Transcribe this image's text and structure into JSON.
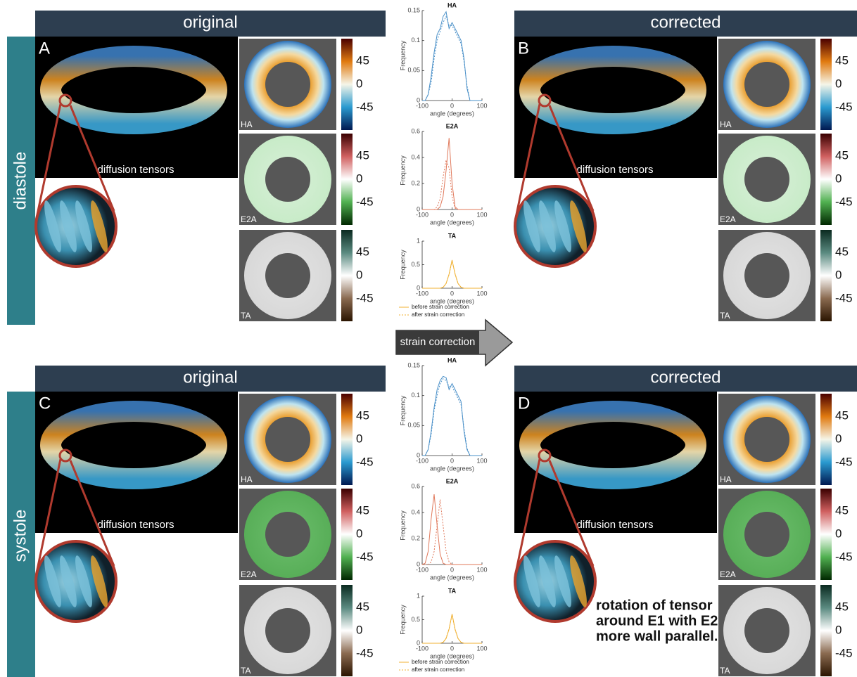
{
  "column_headers": [
    "original",
    "corrected"
  ],
  "row_labels": [
    "diastole",
    "systole"
  ],
  "panel_letters": [
    "A",
    "B",
    "C",
    "D"
  ],
  "tensor_label": "diffusion tensors",
  "map_labels": [
    "HA",
    "E2A",
    "TA"
  ],
  "colorbar_ticks": [
    45,
    0,
    -45
  ],
  "arrow_label": "strain correction",
  "annotation": [
    "rotation of tensor",
    "around E1 with E2",
    "more wall parallel."
  ],
  "chart_data": [
    {
      "type": "line",
      "title": "HA",
      "xlabel": "angle (degrees)",
      "ylabel": "Frequency",
      "x": [
        -100,
        -90,
        -80,
        -70,
        -60,
        -50,
        -40,
        -30,
        -20,
        -10,
        0,
        10,
        20,
        30,
        40,
        50,
        60,
        70,
        80,
        90,
        100
      ],
      "xlim": [
        -100,
        100
      ],
      "xticks": [
        -100,
        0,
        100
      ],
      "ylim": [
        0,
        0.15
      ],
      "yticks": [
        0,
        0.05,
        0.1,
        0.15
      ],
      "series": [
        {
          "name": "before strain correction",
          "color": "#4a90c8",
          "dash": false,
          "values": [
            0,
            0,
            0.01,
            0.04,
            0.08,
            0.11,
            0.12,
            0.14,
            0.148,
            0.12,
            0.13,
            0.12,
            0.11,
            0.1,
            0.07,
            0.02,
            0,
            0,
            0,
            0,
            0
          ]
        },
        {
          "name": "after strain correction",
          "color": "#4a90c8",
          "dash": true,
          "values": [
            0,
            0,
            0.01,
            0.03,
            0.07,
            0.1,
            0.115,
            0.13,
            0.14,
            0.125,
            0.125,
            0.115,
            0.105,
            0.095,
            0.065,
            0.025,
            0,
            0,
            0,
            0,
            0
          ]
        }
      ]
    },
    {
      "type": "line",
      "title": "E2A",
      "xlabel": "angle (degrees)",
      "ylabel": "Frequency",
      "x": [
        -100,
        -90,
        -80,
        -70,
        -60,
        -50,
        -40,
        -30,
        -20,
        -10,
        0,
        10,
        20,
        30,
        40,
        50,
        60,
        70,
        80,
        90,
        100
      ],
      "xlim": [
        -100,
        100
      ],
      "xticks": [
        -100,
        0,
        100
      ],
      "ylim": [
        0,
        0.6
      ],
      "yticks": [
        0,
        0.2,
        0.4,
        0.6
      ],
      "series": [
        {
          "name": "before strain correction",
          "color": "#e0785a",
          "dash": false,
          "values": [
            0,
            0,
            0,
            0,
            0,
            0,
            0.02,
            0.1,
            0.3,
            0.55,
            0.2,
            0.02,
            0,
            0,
            0,
            0,
            0,
            0,
            0,
            0,
            0
          ]
        },
        {
          "name": "after strain correction",
          "color": "#e0785a",
          "dash": true,
          "values": [
            0,
            0,
            0,
            0,
            0,
            0.02,
            0.08,
            0.25,
            0.38,
            0.32,
            0.1,
            0.01,
            0,
            0,
            0,
            0,
            0,
            0,
            0,
            0,
            0
          ]
        }
      ]
    },
    {
      "type": "line",
      "title": "TA",
      "xlabel": "angle (degrees)",
      "ylabel": "Frequency",
      "legend": true,
      "x": [
        -100,
        -90,
        -80,
        -70,
        -60,
        -50,
        -40,
        -30,
        -20,
        -10,
        0,
        10,
        20,
        30,
        40,
        50,
        60,
        70,
        80,
        90,
        100
      ],
      "xlim": [
        -100,
        100
      ],
      "xticks": [
        -100,
        0,
        100
      ],
      "ylim": [
        0,
        1
      ],
      "yticks": [
        0,
        0.5,
        1
      ],
      "series": [
        {
          "name": "before strain correction",
          "color": "#f0b030",
          "dash": false,
          "values": [
            0,
            0,
            0,
            0,
            0,
            0,
            0,
            0.02,
            0.1,
            0.3,
            0.6,
            0.3,
            0.1,
            0.02,
            0,
            0,
            0,
            0,
            0,
            0,
            0
          ]
        },
        {
          "name": "after strain correction",
          "color": "#f0b030",
          "dash": true,
          "values": [
            0,
            0,
            0,
            0,
            0,
            0,
            0,
            0.02,
            0.1,
            0.29,
            0.58,
            0.31,
            0.1,
            0.02,
            0,
            0,
            0,
            0,
            0,
            0,
            0
          ]
        }
      ]
    },
    {
      "type": "line",
      "title": "HA",
      "xlabel": "angle (degrees)",
      "ylabel": "Frequency",
      "x": [
        -100,
        -90,
        -80,
        -70,
        -60,
        -50,
        -40,
        -30,
        -20,
        -10,
        0,
        10,
        20,
        30,
        40,
        50,
        60,
        70,
        80,
        90,
        100
      ],
      "xlim": [
        -100,
        100
      ],
      "xticks": [
        -100,
        0,
        100
      ],
      "ylim": [
        0,
        0.15
      ],
      "yticks": [
        0,
        0.05,
        0.1,
        0.15
      ],
      "series": [
        {
          "name": "before strain correction",
          "color": "#4a90c8",
          "dash": false,
          "values": [
            0,
            0,
            0.01,
            0.04,
            0.08,
            0.11,
            0.125,
            0.132,
            0.13,
            0.11,
            0.12,
            0.11,
            0.1,
            0.09,
            0.04,
            0.01,
            0,
            0,
            0,
            0,
            0
          ]
        },
        {
          "name": "after strain correction",
          "color": "#4a90c8",
          "dash": true,
          "values": [
            0,
            0,
            0.01,
            0.035,
            0.075,
            0.1,
            0.12,
            0.128,
            0.125,
            0.115,
            0.115,
            0.105,
            0.095,
            0.085,
            0.045,
            0.012,
            0,
            0,
            0,
            0,
            0
          ]
        }
      ]
    },
    {
      "type": "line",
      "title": "E2A",
      "xlabel": "angle (degrees)",
      "ylabel": "Frequency",
      "x": [
        -100,
        -90,
        -80,
        -70,
        -60,
        -50,
        -40,
        -30,
        -20,
        -10,
        0,
        10,
        20,
        30,
        40,
        50,
        60,
        70,
        80,
        90,
        100
      ],
      "xlim": [
        -100,
        100
      ],
      "xticks": [
        -100,
        0,
        100
      ],
      "ylim": [
        0,
        0.6
      ],
      "yticks": [
        0,
        0.2,
        0.4,
        0.6
      ],
      "series": [
        {
          "name": "before strain correction",
          "color": "#e0785a",
          "dash": false,
          "values": [
            0,
            0.01,
            0.1,
            0.35,
            0.54,
            0.3,
            0.08,
            0.01,
            0,
            0,
            0,
            0,
            0,
            0,
            0,
            0,
            0,
            0,
            0,
            0,
            0
          ]
        },
        {
          "name": "after strain correction",
          "color": "#e0785a",
          "dash": true,
          "values": [
            0,
            0,
            0,
            0.02,
            0.1,
            0.3,
            0.5,
            0.3,
            0.1,
            0.02,
            0,
            0,
            0,
            0,
            0,
            0,
            0,
            0,
            0,
            0,
            0
          ]
        }
      ]
    },
    {
      "type": "line",
      "title": "TA",
      "xlabel": "angle (degrees)",
      "ylabel": "Frequency",
      "legend": true,
      "x": [
        -100,
        -90,
        -80,
        -70,
        -60,
        -50,
        -40,
        -30,
        -20,
        -10,
        0,
        10,
        20,
        30,
        40,
        50,
        60,
        70,
        80,
        90,
        100
      ],
      "xlim": [
        -100,
        100
      ],
      "xticks": [
        -100,
        0,
        100
      ],
      "ylim": [
        0,
        1
      ],
      "yticks": [
        0,
        0.5,
        1
      ],
      "series": [
        {
          "name": "before strain correction",
          "color": "#f0b030",
          "dash": false,
          "values": [
            0,
            0,
            0,
            0,
            0,
            0,
            0,
            0.02,
            0.1,
            0.3,
            0.62,
            0.3,
            0.1,
            0.02,
            0,
            0,
            0,
            0,
            0,
            0,
            0
          ]
        },
        {
          "name": "after strain correction",
          "color": "#f0b030",
          "dash": true,
          "values": [
            0,
            0,
            0,
            0,
            0,
            0,
            0,
            0.02,
            0.11,
            0.31,
            0.6,
            0.29,
            0.1,
            0.02,
            0,
            0,
            0,
            0,
            0,
            0,
            0
          ]
        }
      ]
    }
  ]
}
